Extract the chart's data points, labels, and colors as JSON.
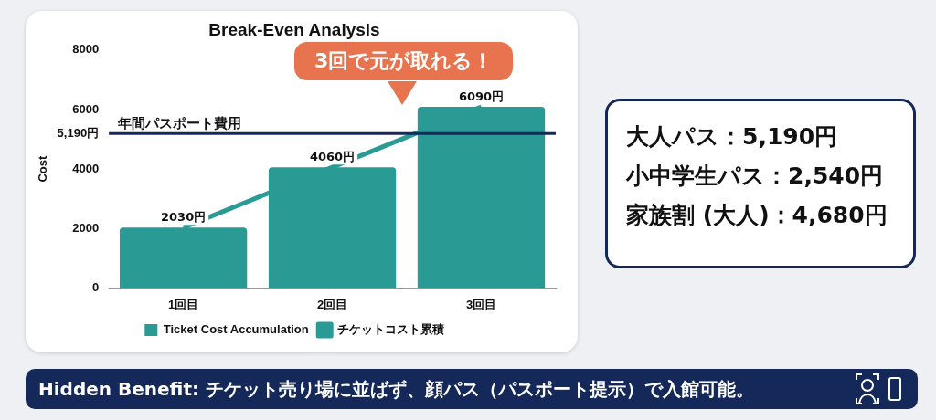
{
  "chart_data": [
    {
      "type": "bar",
      "title": "Break-Even Analysis",
      "ylabel": "Cost",
      "categories": [
        "1回目",
        "2回目",
        "3回目"
      ],
      "series": [
        {
          "name": "Ticket Cost Accumulation",
          "color": "#2a9a94",
          "values": [
            2030,
            4060,
            6090
          ],
          "value_labels": [
            "2030円",
            "4060円",
            "6090円"
          ]
        },
        {
          "name": "チケットコスト累積",
          "type": "line",
          "color": "#2a9a94",
          "values": [
            2030,
            4060,
            6090
          ]
        }
      ],
      "ylim": [
        0,
        8000
      ],
      "yticks": [
        0,
        2000,
        4000,
        {
          "value": 5190,
          "label": "5,190円"
        },
        6000,
        8000
      ],
      "grid": false,
      "legend": "bottom",
      "ref_lines": [
        {
          "axis": "y",
          "value": 5190,
          "label": "年間パスポート費用",
          "color": "#14285a"
        }
      ],
      "annotations": [
        "3回で元が取れる！",
        "Hidden Benefit: チケット売り場に並ばず、顔パス（パスポート提示）で入館可能。"
      ]
    },
    {
      "type": "other",
      "annotations": [
        "大人パス：5,190円",
        "小中学生パス：2,540円",
        "家族割 (大人)：4,680円"
      ]
    }
  ]
}
